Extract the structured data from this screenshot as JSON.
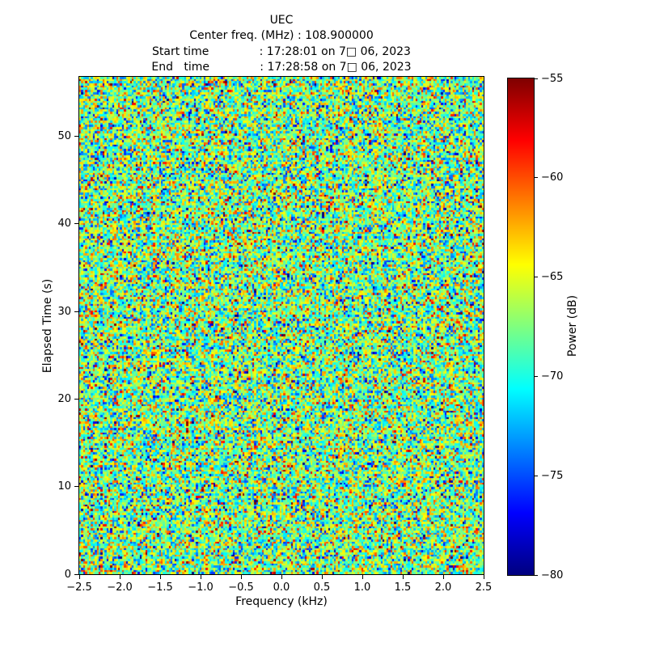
{
  "figure": {
    "background": "#ffffff",
    "text_color": "#000000"
  },
  "chart_data": {
    "type": "heatmap",
    "title_lines": [
      "UEC",
      "Center freq. (MHz) : 108.900000",
      "Start time              : 17:28:01 on 7□ 06, 2023",
      "End   time              : 17:28:58 on 7□ 06, 2023"
    ],
    "xlabel": "Frequency (kHz)",
    "ylabel": "Elapsed Time (s)",
    "xlim": [
      -2.5,
      2.5
    ],
    "ylim": [
      0,
      56.8
    ],
    "xtick_labels": [
      "−2.5",
      "−2.0",
      "−1.5",
      "−1.0",
      "−0.5",
      "0.0",
      "0.5",
      "1.0",
      "1.5",
      "2.0",
      "2.5"
    ],
    "xtick_values": [
      -2.5,
      -2.0,
      -1.5,
      -1.0,
      -0.5,
      0.0,
      0.5,
      1.0,
      1.5,
      2.0,
      2.5
    ],
    "ytick_labels": [
      "0",
      "10",
      "20",
      "30",
      "40",
      "50"
    ],
    "ytick_values": [
      0,
      10,
      20,
      30,
      40,
      50
    ],
    "grid": false,
    "legend": "none",
    "colorbar": {
      "label": "Power (dB)",
      "tick_labels": [
        "−55",
        "−60",
        "−65",
        "−70",
        "−75",
        "−80"
      ],
      "tick_values": [
        -55,
        -60,
        -65,
        -70,
        -75,
        -80
      ],
      "vmin": -80,
      "vmax": -55,
      "colormap": "jet",
      "gradient_top_to_bottom": [
        "#7f0000",
        "#ff0000",
        "#ff7f00",
        "#ffff00",
        "#7fff7f",
        "#00ffff",
        "#007fff",
        "#0000ff",
        "#00007f"
      ]
    },
    "noise": {
      "description": "dense random spectrogram noise, nearest-neighbor cells",
      "seed": 1337,
      "mean_db": -67.6,
      "std_db": 4.5,
      "cols": 208,
      "rows": 228
    }
  }
}
